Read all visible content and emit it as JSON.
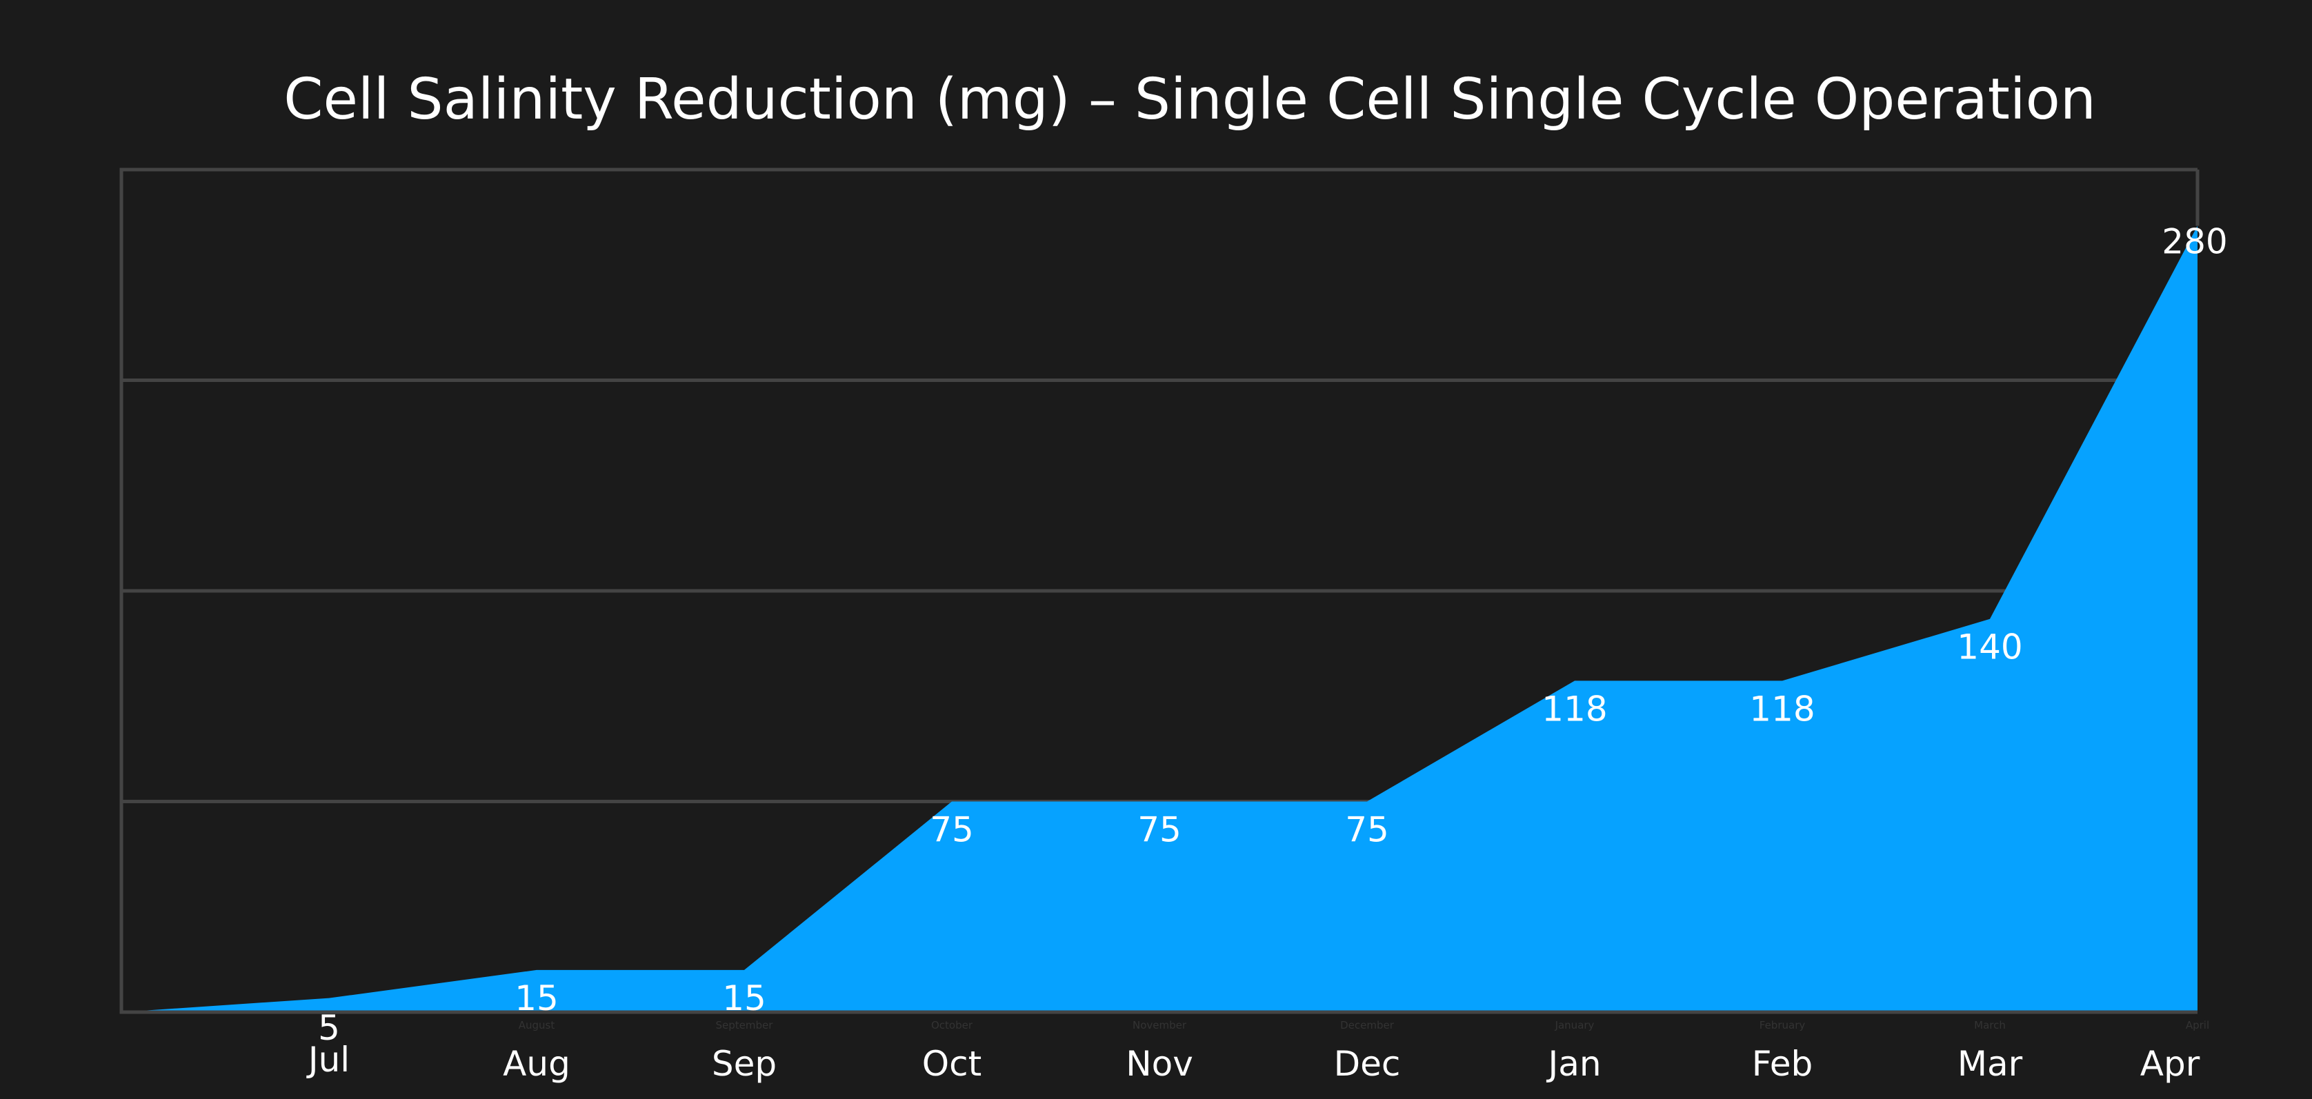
{
  "chart_data": {
    "type": "area",
    "title": "Cell Salinity Reduction (mg) – Single Cell Single Cycle Operation",
    "categories": [
      "Jul",
      "Aug",
      "Sep",
      "Oct",
      "Nov",
      "Dec",
      "Jan",
      "Feb",
      "Mar",
      "Apr"
    ],
    "minor_labels": [
      "",
      "August",
      "September",
      "October",
      "November",
      "December",
      "January",
      "February",
      "March",
      "April"
    ],
    "x": [
      1,
      2,
      3,
      4,
      5,
      6,
      7,
      8,
      9,
      10
    ],
    "series_points": [
      {
        "x": 0,
        "y": 0
      },
      {
        "x": 1,
        "y": 5
      },
      {
        "x": 2,
        "y": 15
      },
      {
        "x": 3,
        "y": 15
      },
      {
        "x": 4,
        "y": 75
      },
      {
        "x": 5,
        "y": 75
      },
      {
        "x": 6,
        "y": 75
      },
      {
        "x": 7,
        "y": 118
      },
      {
        "x": 8,
        "y": 118
      },
      {
        "x": 9,
        "y": 140
      },
      {
        "x": 10,
        "y": 280
      }
    ],
    "data_labels": [
      "5",
      "15",
      "15",
      "75",
      "75",
      "75",
      "118",
      "118",
      "140",
      "280"
    ],
    "values": [
      5,
      15,
      15,
      75,
      75,
      75,
      118,
      118,
      140,
      280
    ],
    "xlim": [
      0,
      10
    ],
    "ylim": [
      0,
      300
    ],
    "y_gridlines": [
      75,
      150,
      225
    ],
    "grid": true,
    "legend": "none",
    "xlabel": "",
    "ylabel": "",
    "colors": {
      "background": "#1b1b1b",
      "area": "#06a2ff",
      "grid": "#444444",
      "text": "#ffffff",
      "minor_text": "#333333"
    }
  }
}
